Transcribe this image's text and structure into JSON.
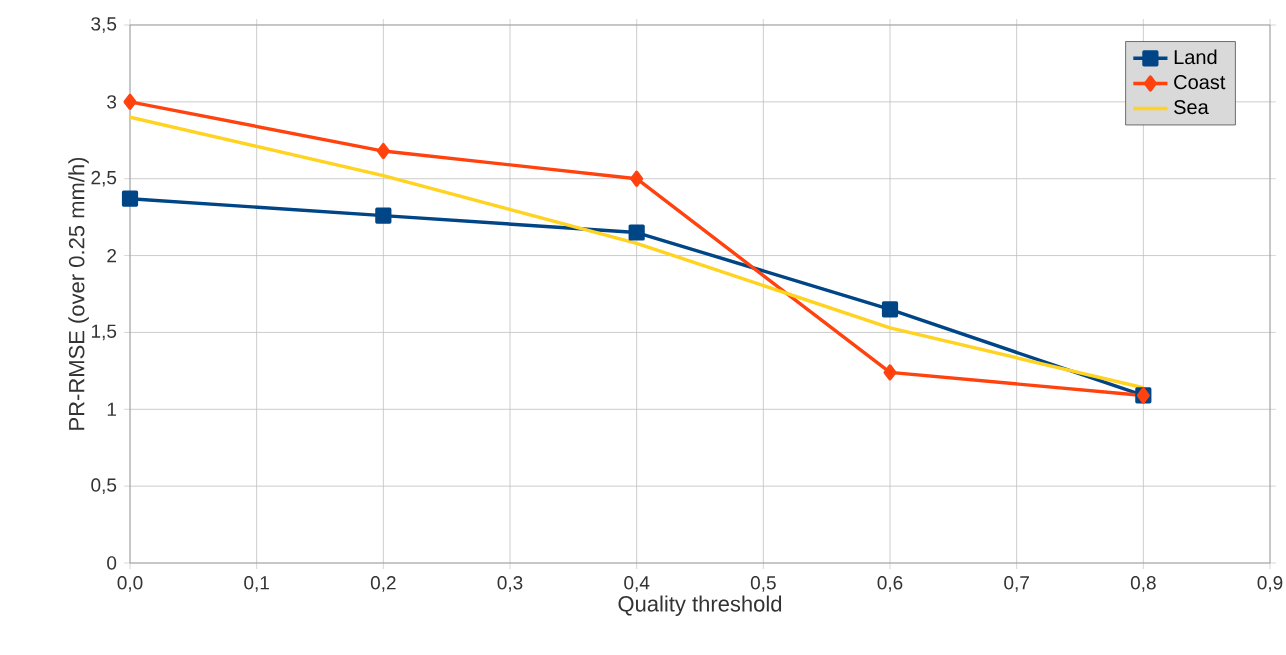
{
  "chart_data": {
    "type": "line",
    "xlabel": "Quality  threshold",
    "ylabel": "PR-RMSE (over 0.25 mm/h)",
    "x": [
      0,
      0.2,
      0.4,
      0.6,
      0.8
    ],
    "series": [
      {
        "name": "Land",
        "color": "#004586",
        "marker": "square",
        "values": [
          2.37,
          2.26,
          2.15,
          1.65,
          1.09
        ]
      },
      {
        "name": "Coast",
        "color": "#ff420e",
        "marker": "diamond",
        "values": [
          3.0,
          2.68,
          2.5,
          1.24,
          1.09
        ]
      },
      {
        "name": "Sea",
        "color": "#ffd320",
        "marker": "none",
        "values": [
          2.9,
          2.52,
          2.08,
          1.53,
          1.14
        ]
      }
    ],
    "xlim": [
      0,
      0.9
    ],
    "ylim": [
      0,
      3.5
    ],
    "xticks": [
      {
        "value": 0,
        "label": "0,0"
      },
      {
        "value": 0.1,
        "label": "0,1"
      },
      {
        "value": 0.2,
        "label": "0,2"
      },
      {
        "value": 0.3,
        "label": "0,3"
      },
      {
        "value": 0.4,
        "label": "0,4"
      },
      {
        "value": 0.5,
        "label": "0,5"
      },
      {
        "value": 0.6,
        "label": "0,6"
      },
      {
        "value": 0.7,
        "label": "0,7"
      },
      {
        "value": 0.8,
        "label": "0,8"
      },
      {
        "value": 0.9,
        "label": "0,9"
      }
    ],
    "yticks": [
      0,
      {
        "value": 0.5,
        "label": "0,5"
      },
      1,
      {
        "value": 1.5,
        "label": "1,5"
      },
      2,
      {
        "value": 2.5,
        "label": "2,5"
      },
      3,
      {
        "value": 3.5,
        "label": "3,5"
      }
    ],
    "grid": true,
    "legend": "top right",
    "line_style": "solid"
  }
}
